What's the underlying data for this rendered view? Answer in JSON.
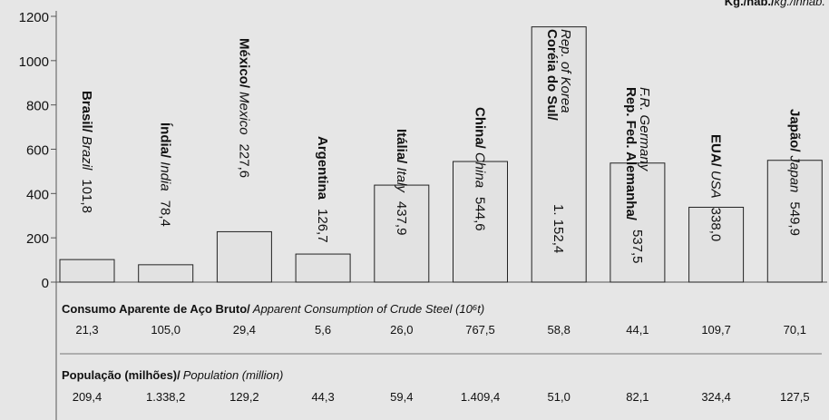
{
  "chart_data": {
    "type": "bar",
    "unit": {
      "pt": "Kg./hab./",
      "en": "kg./inhab."
    },
    "categories": [
      {
        "pt": "Brasil/",
        "en": "Brazil"
      },
      {
        "pt": "Índia/",
        "en": "India"
      },
      {
        "pt": "México/",
        "en": "Mexico"
      },
      {
        "pt": "Argentina",
        "en": null
      },
      {
        "pt": "Itália/",
        "en": "Italy"
      },
      {
        "pt": "China/",
        "en": "China"
      },
      {
        "pt": "Coréia do Sul/",
        "en": "Rep. of Korea"
      },
      {
        "pt": "Rep. Fed. Alemanha/",
        "en": "F.R. Germany"
      },
      {
        "pt": "EUA/",
        "en": "USA"
      },
      {
        "pt": "Japão/",
        "en": "Japan"
      }
    ],
    "values": [
      101.8,
      78.4,
      227.6,
      126.7,
      437.9,
      544.6,
      1152.4,
      537.5,
      338.0,
      549.9
    ],
    "value_labels": [
      "101,8",
      "78,4",
      "227,6",
      "126,7",
      "437,9",
      "544,6",
      "1. 152,4",
      "537,5",
      "338,0",
      "549,9"
    ],
    "color": "#e2e2e2",
    "ylim": [
      0,
      1200
    ],
    "yticks": [
      0,
      200,
      400,
      600,
      800,
      1000,
      1200
    ]
  },
  "table": {
    "rows": [
      {
        "title": {
          "pt": "Consumo Aparente de Aço Bruto/",
          "en": "Apparent Consumption of Crude Steel (10⁶t)"
        },
        "values": [
          "21,3",
          "105,0",
          "29,4",
          "5,6",
          "26,0",
          "767,5",
          "58,8",
          "44,1",
          "109,7",
          "70,1"
        ]
      },
      {
        "title": {
          "pt": "População (milhões)/",
          "en": "Population (million)"
        },
        "values": [
          "209,4",
          "1.338,2",
          "129,2",
          "44,3",
          "59,4",
          "1.409,4",
          "51,0",
          "82,1",
          "324,4",
          "127,5"
        ]
      }
    ]
  }
}
